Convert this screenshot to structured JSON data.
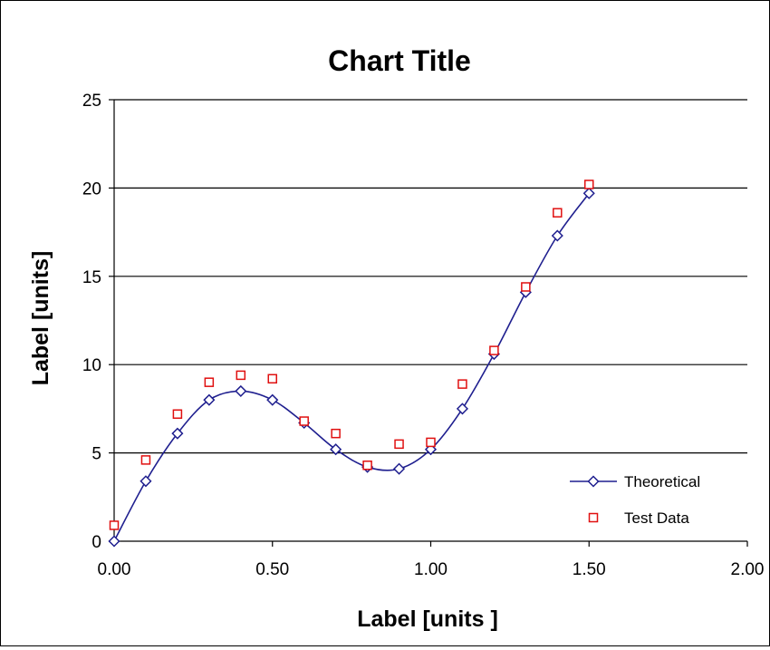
{
  "chart_data": {
    "type": "scatter",
    "title": "Chart Title",
    "xlabel": "Label [units ]",
    "ylabel": "Label [units]",
    "xlim": [
      0,
      2
    ],
    "ylim": [
      0,
      25
    ],
    "x_ticks": [
      "0.00",
      "0.50",
      "1.00",
      "1.50",
      "2.00"
    ],
    "y_ticks": [
      "0",
      "5",
      "10",
      "15",
      "20",
      "25"
    ],
    "grid": "horizontal",
    "legend_position": "bottom-right",
    "series": [
      {
        "name": "Theoretical",
        "style": "line-with-diamond-markers",
        "color": "#1f1f8f",
        "x": [
          0.0,
          0.1,
          0.2,
          0.3,
          0.4,
          0.5,
          0.6,
          0.7,
          0.8,
          0.9,
          1.0,
          1.1,
          1.2,
          1.3,
          1.4,
          1.5
        ],
        "y": [
          0.0,
          3.4,
          6.1,
          8.0,
          8.5,
          8.0,
          6.7,
          5.2,
          4.2,
          4.1,
          5.2,
          7.5,
          10.6,
          14.1,
          17.3,
          19.7
        ]
      },
      {
        "name": "Test Data",
        "style": "square-markers",
        "color": "#e01010",
        "x": [
          0.0,
          0.1,
          0.2,
          0.3,
          0.4,
          0.5,
          0.6,
          0.7,
          0.8,
          0.9,
          1.0,
          1.1,
          1.2,
          1.3,
          1.4,
          1.5
        ],
        "y": [
          0.9,
          4.6,
          7.2,
          9.0,
          9.4,
          9.2,
          6.8,
          6.1,
          4.3,
          5.5,
          5.6,
          8.9,
          10.8,
          14.4,
          18.6,
          20.2
        ]
      }
    ]
  }
}
